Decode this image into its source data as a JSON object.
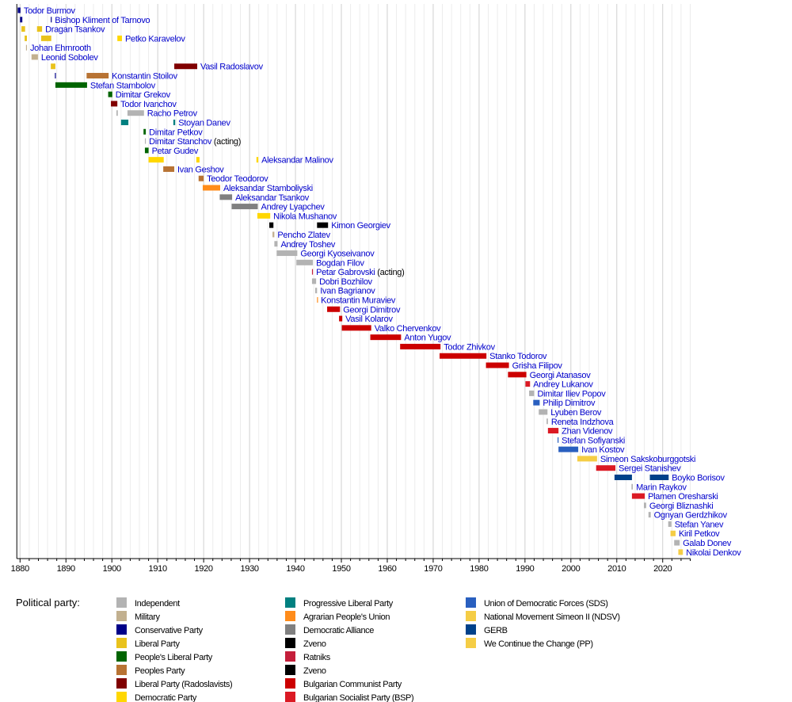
{
  "chart_data": {
    "type": "timeline",
    "title": "",
    "xlim": [
      1879.3,
      2026
    ],
    "xticks": [
      1880,
      1890,
      1900,
      1910,
      1920,
      1930,
      1940,
      1950,
      1960,
      1970,
      1980,
      1990,
      2000,
      2010,
      2020
    ],
    "grid": {
      "minor_every_years": 2,
      "major_every_years": 10
    },
    "legend_title": "Political party:",
    "legend_position": "bottom",
    "parties": [
      {
        "id": "IND",
        "name": "Independent",
        "color": "#b3b3b3"
      },
      {
        "id": "MIL",
        "name": "Military",
        "color": "#c2b08f"
      },
      {
        "id": "CON",
        "name": "Conservative Party",
        "color": "#000088"
      },
      {
        "id": "LIB",
        "name": "Liberal Party",
        "color": "#e9c21c"
      },
      {
        "id": "PLP",
        "name": "People's Liberal Party",
        "color": "#006400"
      },
      {
        "id": "PP",
        "name": "Peoples Party",
        "color": "#b87333"
      },
      {
        "id": "RAD",
        "name": "Liberal Party (Radoslavists)",
        "color": "#800000"
      },
      {
        "id": "DEM",
        "name": "Democratic Party",
        "color": "#ffd700"
      },
      {
        "id": "PRL",
        "name": "Progressive Liberal Party",
        "color": "#008080"
      },
      {
        "id": "AGR",
        "name": "Agrarian People's Union",
        "color": "#ff8c1a"
      },
      {
        "id": "DA",
        "name": "Democratic Alliance",
        "color": "#808080"
      },
      {
        "id": "ZV",
        "name": "Zveno",
        "color": "#000000"
      },
      {
        "id": "RAT",
        "name": "Ratniks",
        "color": "#c41e3a"
      },
      {
        "id": "ZV2",
        "name": "Zveno",
        "color": "#000000"
      },
      {
        "id": "BCP",
        "name": "Bulgarian Communist Party",
        "color": "#cc0000"
      },
      {
        "id": "BSP",
        "name": "Bulgarian Socialist Party (BSP)",
        "color": "#db1a24"
      },
      {
        "id": "SDS",
        "name": "Union of Democratic Forces (SDS)",
        "color": "#295fbf"
      },
      {
        "id": "NDSV",
        "name": "National Movement Simeon II (NDSV)",
        "color": "#f5cd45"
      },
      {
        "id": "GERB",
        "name": "GERB",
        "color": "#00418a"
      },
      {
        "id": "PPC",
        "name": "We Continue the Change (PP)",
        "color": "#f5cd45"
      }
    ],
    "rows": [
      {
        "label": "Todor Burmov",
        "terms": [
          [
            1879.5,
            1880.1,
            "CON"
          ]
        ]
      },
      {
        "label": "Bishop Kliment of Tarnovo",
        "terms": [
          [
            1880.0,
            1880.5,
            "CON"
          ],
          [
            1886.7,
            1886.9,
            "CON"
          ]
        ]
      },
      {
        "label": "Dragan Tsankov",
        "terms": [
          [
            1880.3,
            1881.1,
            "LIB"
          ],
          [
            1883.7,
            1884.8,
            "LIB"
          ]
        ]
      },
      {
        "label": "Petko Karavelov",
        "terms": [
          [
            1881.0,
            1881.5,
            "LIB"
          ],
          [
            1884.6,
            1886.8,
            "LIB"
          ],
          [
            1901.2,
            1902.2,
            "DEM"
          ]
        ]
      },
      {
        "label": "Johan Ehrnrooth",
        "terms": [
          [
            1881.3,
            1881.5,
            "MIL"
          ]
        ]
      },
      {
        "label": "Leonid Sobolev",
        "terms": [
          [
            1882.5,
            1883.9,
            "MIL"
          ]
        ]
      },
      {
        "label": "Vasil Radoslavov",
        "terms": [
          [
            1886.7,
            1887.7,
            "LIB"
          ],
          [
            1913.6,
            1918.6,
            "RAD"
          ]
        ]
      },
      {
        "label": "Konstantin Stoilov",
        "terms": [
          [
            1887.6,
            1887.8,
            "CON"
          ],
          [
            1894.5,
            1899.3,
            "PP"
          ]
        ]
      },
      {
        "label": "Stefan Stambolov",
        "terms": [
          [
            1887.7,
            1894.6,
            "PLP"
          ]
        ]
      },
      {
        "label": "Dimitar Grekov",
        "terms": [
          [
            1899.2,
            1900.1,
            "PLP"
          ]
        ]
      },
      {
        "label": "Todor Ivanchov",
        "terms": [
          [
            1899.8,
            1901.2,
            "RAD"
          ]
        ]
      },
      {
        "label": "Racho Petrov",
        "terms": [
          [
            1901.0,
            1901.3,
            "IND"
          ],
          [
            1903.4,
            1907.0,
            "IND"
          ]
        ]
      },
      {
        "label": "Stoyan Danev",
        "terms": [
          [
            1902.0,
            1903.6,
            "PRL"
          ],
          [
            1913.4,
            1913.8,
            "PRL"
          ]
        ]
      },
      {
        "label": "Dimitar Petkov",
        "terms": [
          [
            1906.9,
            1907.4,
            "PLP"
          ]
        ]
      },
      {
        "label": "Dimitar Stanchov",
        "note": "(acting)",
        "terms": [
          [
            1907.2,
            1907.4,
            "IND"
          ]
        ]
      },
      {
        "label": "Petar Gudev",
        "terms": [
          [
            1907.2,
            1908.0,
            "PLP"
          ]
        ]
      },
      {
        "label": "Aleksandar Malinov",
        "terms": [
          [
            1908.0,
            1911.3,
            "DEM"
          ],
          [
            1918.4,
            1919.1,
            "DEM"
          ],
          [
            1931.5,
            1931.9,
            "DEM"
          ]
        ]
      },
      {
        "label": "Ivan Geshov",
        "terms": [
          [
            1911.2,
            1913.6,
            "PP"
          ]
        ]
      },
      {
        "label": "Teodor Teodorov",
        "terms": [
          [
            1918.9,
            1920.0,
            "PP"
          ]
        ]
      },
      {
        "label": "Aleksandar Stamboliyski",
        "terms": [
          [
            1919.8,
            1923.6,
            "AGR"
          ]
        ]
      },
      {
        "label": "Aleksandar Tsankov",
        "terms": [
          [
            1923.5,
            1926.2,
            "DA"
          ]
        ]
      },
      {
        "label": "Andrey Lyapchev",
        "terms": [
          [
            1926.1,
            1931.8,
            "DA"
          ]
        ]
      },
      {
        "label": "Nikola Mushanov",
        "terms": [
          [
            1931.7,
            1934.5,
            "DEM"
          ]
        ]
      },
      {
        "label": "Kimon Georgiev",
        "terms": [
          [
            1934.3,
            1935.2,
            "ZV"
          ],
          [
            1944.7,
            1947.1,
            "ZV"
          ]
        ]
      },
      {
        "label": "Pencho Zlatev",
        "terms": [
          [
            1935.0,
            1935.4,
            "MIL"
          ]
        ]
      },
      {
        "label": "Andrey Toshev",
        "terms": [
          [
            1935.4,
            1936.1,
            "IND"
          ]
        ]
      },
      {
        "label": "Georgi Kyoseivanov",
        "terms": [
          [
            1935.9,
            1940.4,
            "IND"
          ]
        ]
      },
      {
        "label": "Bogdan Filov",
        "terms": [
          [
            1940.2,
            1943.8,
            "IND"
          ]
        ]
      },
      {
        "label": "Petar Gabrovski",
        "note": "(acting)",
        "terms": [
          [
            1943.6,
            1943.8,
            "RAT"
          ]
        ]
      },
      {
        "label": "Dobri Bozhilov",
        "terms": [
          [
            1943.6,
            1944.5,
            "IND"
          ]
        ]
      },
      {
        "label": "Ivan Bagrianov",
        "terms": [
          [
            1944.3,
            1944.7,
            "IND"
          ]
        ]
      },
      {
        "label": "Konstantin Muraviev",
        "terms": [
          [
            1944.7,
            1944.85,
            "AGR"
          ]
        ]
      },
      {
        "label": "Georgi Dimitrov",
        "terms": [
          [
            1946.9,
            1949.7,
            "BCP"
          ]
        ]
      },
      {
        "label": "Vasil Kolarov",
        "terms": [
          [
            1949.5,
            1950.2,
            "BCP"
          ]
        ]
      },
      {
        "label": "Valko Chervenkov",
        "terms": [
          [
            1950.1,
            1956.5,
            "BCP"
          ]
        ]
      },
      {
        "label": "Anton Yugov",
        "terms": [
          [
            1956.3,
            1963.0,
            "BCP"
          ]
        ]
      },
      {
        "label": "Todor Zhivkov",
        "terms": [
          [
            1962.8,
            1971.6,
            "BCP"
          ]
        ]
      },
      {
        "label": "Stanko Todorov",
        "terms": [
          [
            1971.4,
            1981.6,
            "BCP"
          ]
        ]
      },
      {
        "label": "Grisha Filipov",
        "terms": [
          [
            1981.5,
            1986.5,
            "BCP"
          ]
        ]
      },
      {
        "label": "Georgi Atanasov",
        "terms": [
          [
            1986.3,
            1990.3,
            "BCP"
          ]
        ]
      },
      {
        "label": "Andrey Lukanov",
        "terms": [
          [
            1990.1,
            1991.1,
            "BSP"
          ]
        ]
      },
      {
        "label": "Dimitar Iliev Popov",
        "terms": [
          [
            1990.9,
            1992.0,
            "IND"
          ]
        ]
      },
      {
        "label": "Philip Dimitrov",
        "terms": [
          [
            1991.8,
            1993.2,
            "SDS"
          ]
        ]
      },
      {
        "label": "Lyuben Berov",
        "terms": [
          [
            1993.0,
            1994.9,
            "IND"
          ]
        ]
      },
      {
        "label": "Reneta Indzhova",
        "terms": [
          [
            1994.7,
            1995.0,
            "IND"
          ]
        ]
      },
      {
        "label": "Zhan Videnov",
        "terms": [
          [
            1995.0,
            1997.3,
            "BSP"
          ]
        ]
      },
      {
        "label": "Stefan Sofiyanski",
        "terms": [
          [
            1997.1,
            1997.3,
            "SDS"
          ]
        ]
      },
      {
        "label": "Ivan Kostov",
        "terms": [
          [
            1997.3,
            2001.6,
            "SDS"
          ]
        ]
      },
      {
        "label": "Simeon Sakskoburggotski",
        "terms": [
          [
            2001.4,
            2005.7,
            "NDSV"
          ]
        ]
      },
      {
        "label": "Sergei Stanishev",
        "terms": [
          [
            2005.5,
            2009.7,
            "BSP"
          ]
        ]
      },
      {
        "label": "Boyko Borisov",
        "terms": [
          [
            2009.5,
            2013.3,
            "GERB"
          ],
          [
            2017.2,
            2021.3,
            "GERB"
          ]
        ]
      },
      {
        "label": "Marin Raykov",
        "terms": [
          [
            2013.2,
            2013.5,
            "IND"
          ]
        ]
      },
      {
        "label": "Plamen Oresharski",
        "terms": [
          [
            2013.3,
            2016.1,
            "BSP"
          ]
        ]
      },
      {
        "label": "Georgi Bliznashki",
        "terms": [
          [
            2015.9,
            2016.4,
            "IND"
          ]
        ]
      },
      {
        "label": "Ognyan Gerdzhikov",
        "terms": [
          [
            2016.9,
            2017.4,
            "IND"
          ]
        ]
      },
      {
        "label": "Stefan Yanev",
        "terms": [
          [
            2021.2,
            2021.9,
            "IND"
          ]
        ]
      },
      {
        "label": "Kiril Petkov",
        "terms": [
          [
            2021.7,
            2022.8,
            "PPC"
          ]
        ]
      },
      {
        "label": "Galab Donev",
        "terms": [
          [
            2022.5,
            2023.7,
            "IND"
          ]
        ]
      },
      {
        "label": "Nikolai Denkov",
        "terms": [
          [
            2023.4,
            2024.4,
            "PPC"
          ]
        ]
      }
    ]
  }
}
